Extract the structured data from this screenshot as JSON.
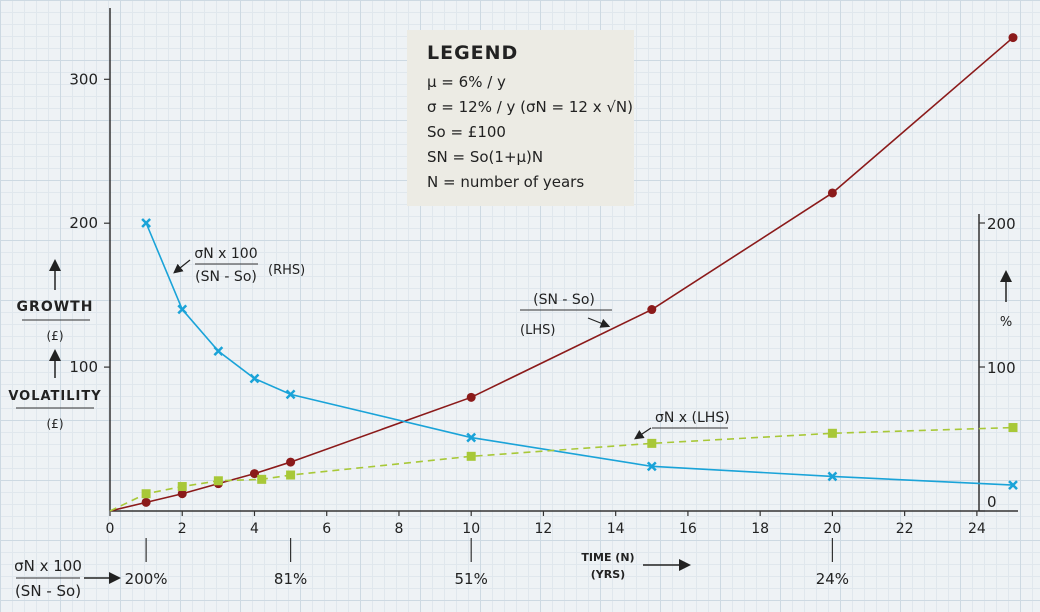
{
  "chart_data": {
    "type": "line",
    "x_axis": {
      "label": "TIME (N)",
      "sublabel": "(YRS)",
      "range": [
        0,
        25
      ],
      "ticks": [
        0,
        2,
        4,
        6,
        8,
        10,
        12,
        14,
        16,
        18,
        20,
        22,
        24
      ]
    },
    "y_left": {
      "label": "GROWTH",
      "unit": "(£)",
      "range": [
        0,
        340
      ],
      "ticks": [
        100,
        200,
        300
      ]
    },
    "y_right": {
      "label": "%",
      "range": [
        0,
        200
      ],
      "ticks": [
        0,
        100,
        200
      ]
    },
    "volatility_label": "VOLATILITY",
    "volatility_unit": "(£)",
    "series": [
      {
        "name": "(SN - So) (LHS)",
        "axis": "left",
        "color": "#8b1a1a",
        "style": "solid-circle",
        "x": [
          1,
          2,
          3,
          4,
          5,
          10,
          15,
          20,
          25
        ],
        "y": [
          6,
          12,
          19,
          26,
          34,
          79,
          140,
          221,
          329
        ]
      },
      {
        "name": "σN x 100 / (SN - So) (RHS)",
        "axis": "right",
        "color": "#1aa3d8",
        "style": "solid-x",
        "x": [
          1,
          2,
          3,
          4,
          5,
          10,
          15,
          20,
          25
        ],
        "y": [
          200,
          140,
          111,
          92,
          81,
          51,
          31,
          24,
          18
        ]
      },
      {
        "name": "σN x (LHS)",
        "axis": "left",
        "color": "#a8c838",
        "style": "dashed-square",
        "x": [
          1,
          2,
          3,
          4.2,
          5,
          10,
          15,
          20,
          25
        ],
        "y": [
          12,
          17,
          21,
          22,
          25,
          38,
          47,
          54,
          58
        ]
      }
    ],
    "bottom_row": {
      "label_top": "σN x 100",
      "label_bottom": "(SN - So)",
      "values": [
        {
          "x": 1,
          "text": "200%"
        },
        {
          "x": 5,
          "text": "81%"
        },
        {
          "x": 10,
          "text": "51%"
        },
        {
          "x": 20,
          "text": "24%"
        }
      ]
    },
    "annotations": {
      "rhs_top": "σN x 100",
      "rhs_bottom": "(SN - So)",
      "rhs_tag": "(RHS)",
      "lhs_top": "(SN - So)",
      "lhs_tag": "(LHS)",
      "sigma_label": "σN x (LHS)"
    }
  },
  "legend": {
    "title": "LEGEND",
    "lines": [
      "μ = 6% / y",
      "σ = 12% / y (σN = 12 x √N)",
      "So = £100",
      "SN = So(1+μ)N",
      "N = number of years"
    ]
  },
  "colors": {
    "growth": "#8b1a1a",
    "ratio": "#1aa3d8",
    "sigma": "#a8c838",
    "axis": "#333333"
  }
}
